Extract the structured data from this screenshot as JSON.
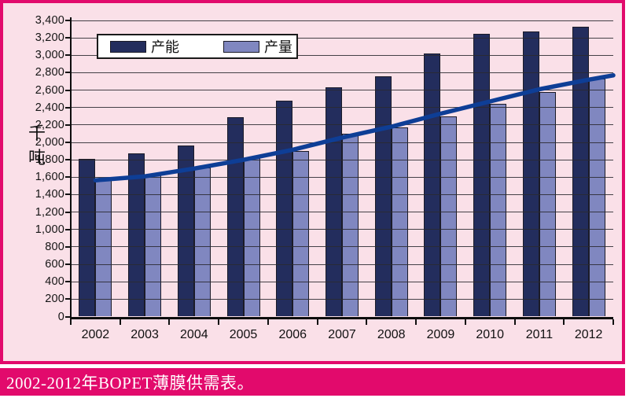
{
  "colors": {
    "accent_magenta": "#e20a6c",
    "panel_background": "#fae0e8",
    "capacity_bar": "#232d5d",
    "output_bar": "#8087c0",
    "trend_line": "#0e3e96",
    "gridline": "#2a2a30",
    "text": "#111111"
  },
  "caption": {
    "text": "2002-2012年BOPET薄膜供需表。"
  },
  "y_axis": {
    "title": "千吨",
    "min": 0,
    "max": 3400,
    "tick_step": 200
  },
  "legend": {
    "items": [
      {
        "label": "产能",
        "color": "#232d5d"
      },
      {
        "label": "产量",
        "color": "#8087c0"
      }
    ]
  },
  "chart_data": {
    "type": "bar",
    "title": "2002-2012年BOPET薄膜供需表。",
    "xlabel": "",
    "ylabel": "千吨",
    "ylim": [
      0,
      3400
    ],
    "ytick_step": 200,
    "grid": true,
    "legend_position": "top-left",
    "categories": [
      "2002",
      "2003",
      "2004",
      "2005",
      "2006",
      "2007",
      "2008",
      "2009",
      "2010",
      "2011",
      "2012"
    ],
    "series": [
      {
        "name": "产能",
        "type": "bar",
        "color": "#232d5d",
        "values": [
          1810,
          1870,
          1960,
          2290,
          2480,
          2630,
          2760,
          3020,
          3250,
          3270,
          3330
        ]
      },
      {
        "name": "产量",
        "type": "bar",
        "color": "#8087c0",
        "values": [
          1570,
          1630,
          1710,
          1820,
          1900,
          2100,
          2170,
          2300,
          2440,
          2580,
          2730
        ]
      }
    ],
    "trend_line": {
      "follows_series": "产量",
      "color": "#0e3e96",
      "values": [
        1565,
        1610,
        1700,
        1800,
        1915,
        2055,
        2180,
        2330,
        2470,
        2610,
        2720
      ],
      "right_edge_value": 2770
    }
  }
}
